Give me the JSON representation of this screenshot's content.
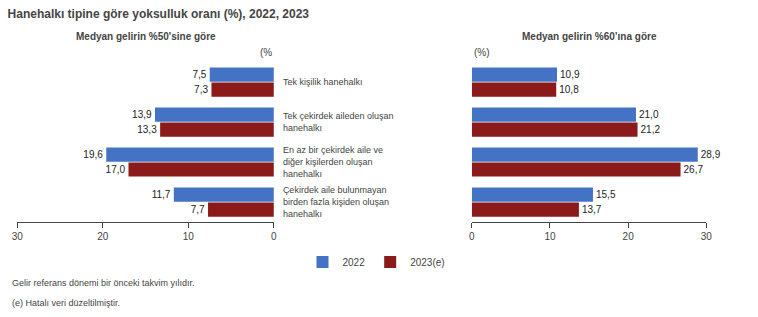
{
  "title": "Hanehalkı tipine göre yoksulluk oranı (%), 2022, 2023",
  "annotations": [
    "Gelir referans dönemi bir önceki takvim yılıdır.",
    "(e) Hatalı veri düzeltilmiştir."
  ],
  "chart_data": [
    {
      "type": "bar",
      "orientation": "horizontal",
      "subtitle": "Medyan gelirin %50'sine göre",
      "xlabel": "(%",
      "categories": [
        "Tek kişilik hanehalkı",
        "Tek çekirdek aileden oluşan\nhanehalkı",
        "En az bir çekirdek aile ve\ndiğer kişilerden oluşan\nhanehalkı",
        "Çekirdek aile bulunmayan\nbirden fazla kişiden oluşan\nhanehalkı"
      ],
      "series": [
        {
          "name": "2022",
          "color": "#4472C4",
          "values": [
            7.5,
            13.9,
            19.6,
            11.7
          ],
          "value_labels": [
            "7,5",
            "13,9",
            "19,6",
            "11,7"
          ]
        },
        {
          "name": "2023(e)",
          "color": "#8B1A1A",
          "values": [
            7.3,
            13.3,
            17.0,
            7.7
          ],
          "value_labels": [
            "7,3",
            "13,3",
            "17,0",
            "7,7"
          ]
        }
      ],
      "xlim": [
        30,
        0
      ],
      "xticks": [
        30,
        20,
        10,
        0
      ],
      "data_labels": true,
      "grid": false,
      "legend": "bottom"
    },
    {
      "type": "bar",
      "orientation": "horizontal",
      "subtitle": "Medyan gelirin %60’ına göre",
      "xlabel": "(%)",
      "categories": [
        "Tek kişilik hanehalkı",
        "Tek çekirdek aileden oluşan\nhanehalkı",
        "En az bir çekirdek aile ve\ndiğer kişilerden oluşan\nhanehalkı",
        "Çekirdek aile bulunmayan\nbirden fazla kişiden oluşan\nhanehalkı"
      ],
      "series": [
        {
          "name": "2022",
          "color": "#4472C4",
          "values": [
            10.9,
            21.0,
            28.9,
            15.5
          ],
          "value_labels": [
            "10,9",
            "21,0",
            "28,9",
            "15,5"
          ]
        },
        {
          "name": "2023(e)",
          "color": "#8B1A1A",
          "values": [
            10.8,
            21.2,
            26.7,
            13.7
          ],
          "value_labels": [
            "10,8",
            "21,2",
            "26,7",
            "13,7"
          ]
        }
      ],
      "xlim": [
        0,
        30
      ],
      "xticks": [
        0,
        10,
        20,
        30
      ],
      "data_labels": true,
      "grid": false,
      "tick_labels": "x"
    }
  ]
}
